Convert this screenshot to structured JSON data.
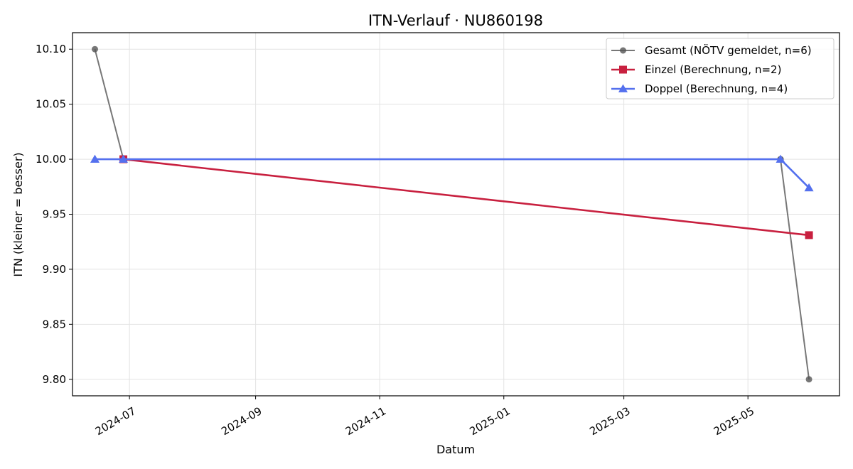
{
  "chart_data": {
    "type": "line",
    "title": "ITN-Verlauf · NU860198",
    "xlabel": "Datum",
    "ylabel": "ITN  (kleiner = besser)",
    "xlim": [
      "2024-06-03",
      "2025-06-15"
    ],
    "ylim": [
      9.785,
      10.115
    ],
    "x_ticks": [
      "2024-07",
      "2024-09",
      "2024-11",
      "2025-01",
      "2025-03",
      "2025-05"
    ],
    "y_ticks": [
      "9.80",
      "9.85",
      "9.90",
      "9.95",
      "10.00",
      "10.05",
      "10.10"
    ],
    "grid": true,
    "legend_position": "top-right",
    "series": [
      {
        "name": "Gesamt (NÖTV gemeldet, n=6)",
        "color": "#555555",
        "marker": "circle",
        "points": [
          {
            "x": "2024-06-14",
            "y": 10.1
          },
          {
            "x": "2024-06-28",
            "y": 10.0
          },
          {
            "x": "2024-06-28",
            "y": 10.0
          },
          {
            "x": "2025-05-17",
            "y": 10.0
          },
          {
            "x": "2025-05-17",
            "y": 10.0
          },
          {
            "x": "2025-05-31",
            "y": 9.8
          }
        ]
      },
      {
        "name": "Einzel (Berechnung, n=2)",
        "color": "#c8203f",
        "marker": "square",
        "points": [
          {
            "x": "2024-06-28",
            "y": 10.0
          },
          {
            "x": "2025-05-31",
            "y": 9.931
          }
        ]
      },
      {
        "name": "Doppel (Berechnung, n=4)",
        "color": "#5470ee",
        "marker": "triangle",
        "points": [
          {
            "x": "2024-06-14",
            "y": 10.0
          },
          {
            "x": "2024-06-28",
            "y": 10.0
          },
          {
            "x": "2025-05-17",
            "y": 10.0
          },
          {
            "x": "2025-05-31",
            "y": 9.974
          }
        ]
      }
    ]
  }
}
